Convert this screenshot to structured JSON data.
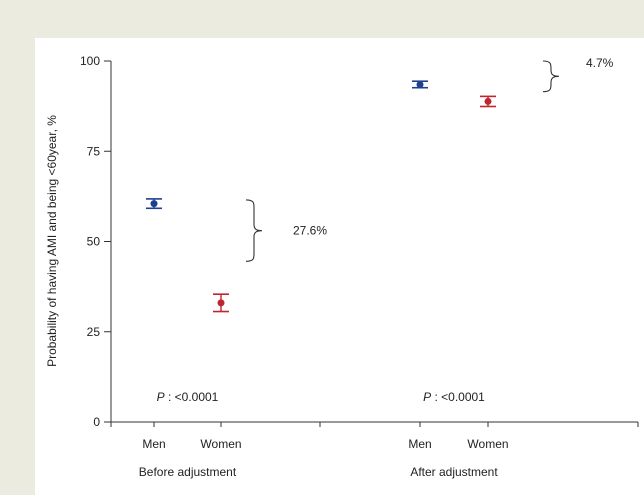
{
  "chart_data": {
    "type": "scatter",
    "groups": [
      {
        "label": "Before adjustment",
        "categories": [
          "Men",
          "Women"
        ]
      },
      {
        "label": "After adjustment",
        "categories": [
          "Men",
          "Women"
        ]
      }
    ],
    "ylabel": "Probability of having AMI and being <60year, %",
    "ylim": [
      0,
      100
    ],
    "yticks": [
      0,
      25,
      50,
      75,
      100
    ],
    "series": [
      {
        "name": "Men",
        "color": "#1f3f8f",
        "points": [
          {
            "group": "Before adjustment",
            "value": 60.5,
            "ci": [
              59.2,
              61.8
            ]
          },
          {
            "group": "After adjustment",
            "value": 93.5,
            "ci": [
              92.6,
              94.4
            ]
          }
        ]
      },
      {
        "name": "Women",
        "color": "#c0242c",
        "points": [
          {
            "group": "Before adjustment",
            "value": 33.0,
            "ci": [
              30.6,
              35.4
            ]
          },
          {
            "group": "After adjustment",
            "value": 88.8,
            "ci": [
              87.4,
              90.2
            ]
          }
        ]
      }
    ],
    "annotations": [
      {
        "group": "Before adjustment",
        "text": "27.6%",
        "bracket_range": [
          44.5,
          61.5
        ]
      },
      {
        "group": "After adjustment",
        "text": "4.7%",
        "bracket_range": [
          91.5,
          100
        ]
      }
    ],
    "pvalues": [
      {
        "group": "Before adjustment",
        "label": "P",
        "value": ": <0.0001"
      },
      {
        "group": "After adjustment",
        "label": "P",
        "value": ": <0.0001"
      }
    ]
  }
}
